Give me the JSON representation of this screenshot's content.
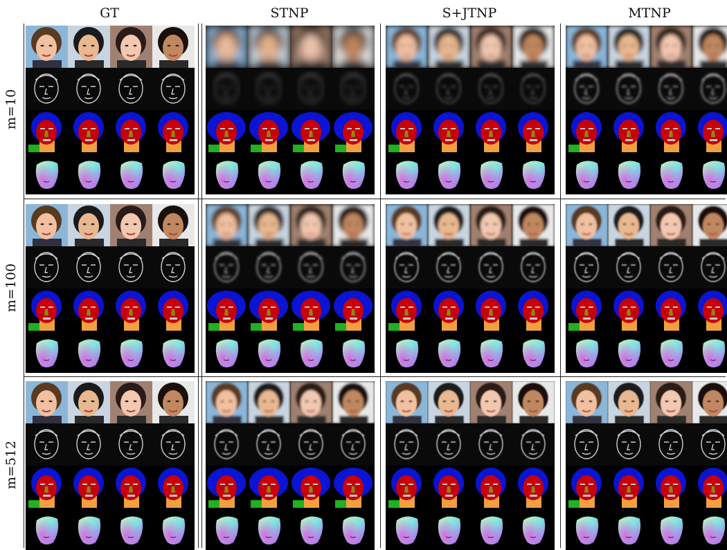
{
  "columns": [
    "GT",
    "STNP",
    "S+JTNP",
    "MTNP"
  ],
  "rows": [
    "m=10",
    "m=100",
    "m=512"
  ],
  "modalities": [
    "rgb",
    "edge",
    "segmentation",
    "normals"
  ],
  "colors": {
    "seg_background": "#000000",
    "seg_hair": "#0a14d2",
    "seg_skin": "#c8000a",
    "seg_neck": "#f0a040",
    "seg_cloth": "#20b020",
    "seg_nose": "#8a8a14",
    "seg_mouth": "#c8c8c8"
  }
}
